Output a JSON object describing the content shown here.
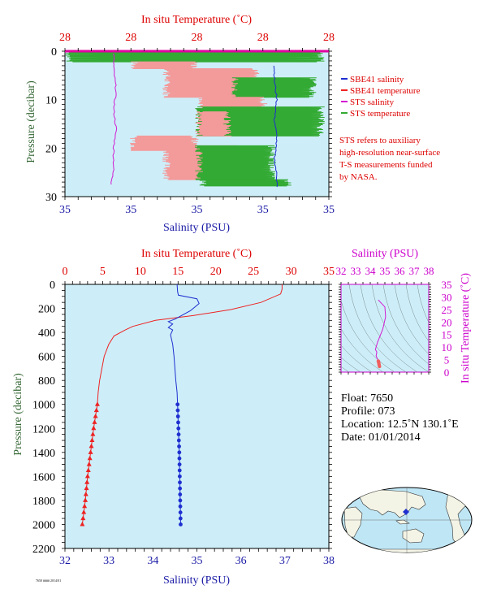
{
  "colors": {
    "panel_bg": "#cdeef9",
    "sbe41_salinity": "#1f2fd0",
    "sbe41_temperature": "#ee2222",
    "sts_salinity": "#d21cd2",
    "sts_temperature": "#33aa33",
    "sts_temperature_fill": "#f39a9a",
    "red_text": "#dd0000",
    "blue_text": "#1a1aa6",
    "green_text": "#336633",
    "magenta_text": "#cc00cc"
  },
  "top_chart": {
    "temp_axis_title": "In situ Temperature (˚C)",
    "temp_tick_labels": [
      "28",
      "28",
      "28",
      "28",
      "28"
    ],
    "sal_axis_title": "Salinity (PSU)",
    "sal_tick_labels": [
      "35",
      "35",
      "35",
      "35",
      "35"
    ],
    "pressure_axis_title": "Pressure (decibar)",
    "pressure_tick_labels": [
      "0",
      "10",
      "20",
      "30"
    ],
    "legend": [
      {
        "label": "SBE41 salinity",
        "color_key": "sbe41_salinity"
      },
      {
        "label": "SBE41 temperature",
        "color_key": "sbe41_temperature"
      },
      {
        "label": "STS salinity",
        "color_key": "sts_salinity"
      },
      {
        "label": "STS temperature",
        "color_key": "sts_temperature"
      }
    ],
    "note_lines": [
      "STS refers to auxiliary",
      "high-resolution near-surface",
      "T-S measurements funded",
      "by NASA."
    ]
  },
  "main_chart": {
    "temp_axis_title": "In situ Temperature (˚C)",
    "temp_tick_labels": [
      "0",
      "5",
      "10",
      "15",
      "20",
      "25",
      "30",
      "35"
    ],
    "sal_axis_title": "Salinity (PSU)",
    "sal_tick_labels": [
      "32",
      "33",
      "34",
      "35",
      "36",
      "37",
      "38"
    ],
    "pressure_axis_title": "Pressure (decibar)",
    "pressure_tick_labels": [
      "0",
      "200",
      "400",
      "600",
      "800",
      "1000",
      "1200",
      "1400",
      "1600",
      "1800",
      "2000",
      "2200"
    ]
  },
  "ts_chart": {
    "sal_axis_title": "Salinity (PSU)",
    "sal_tick_labels": [
      "32",
      "33",
      "34",
      "35",
      "36",
      "37",
      "38"
    ],
    "temp_axis_title": "In situ Temperature (˚C)",
    "temp_tick_labels": [
      "0",
      "5",
      "10",
      "15",
      "20",
      "25",
      "30",
      "35"
    ]
  },
  "float_info": {
    "float": "Float:  7650",
    "profile": "Profile:  073",
    "location": "Location:  12.5˚N  130.1˚E",
    "date": "Date:  01/01/2014"
  },
  "footer_text": "7650 #### 2014/01",
  "chart_data": [
    {
      "type": "line",
      "title": "",
      "xlabel": "Salinity (PSU)",
      "x2label": "In situ Temperature (˚C)",
      "ylabel": "Pressure (decibar)",
      "ylim": [
        0,
        30
      ],
      "y_inverted": true,
      "series": [
        {
          "name": "SBE41 salinity",
          "x_axis": "salinity",
          "points": [
            [
              34.93,
              3
            ],
            [
              34.93,
              6
            ],
            [
              34.94,
              10
            ],
            [
              34.93,
              14
            ],
            [
              34.94,
              18
            ],
            [
              34.93,
              22
            ],
            [
              34.94,
              26
            ],
            [
              34.94,
              28
            ]
          ]
        },
        {
          "name": "STS salinity",
          "x_axis": "salinity",
          "points": [
            [
              34.49,
              0.5
            ],
            [
              34.49,
              4
            ],
            [
              34.5,
              8
            ],
            [
              34.49,
              12
            ],
            [
              34.5,
              16
            ],
            [
              34.49,
              20
            ],
            [
              34.49,
              24
            ],
            [
              34.48,
              27.5
            ]
          ]
        },
        {
          "name": "STS temperature",
          "x_axis": "temperature",
          "note": "oscillating near-surface trace, values ~28 ˚C (axis ticks all print 28)"
        }
      ]
    },
    {
      "type": "line",
      "title": "",
      "xlabel": "Salinity (PSU)",
      "x2label": "In situ Temperature (˚C)",
      "ylabel": "Pressure (decibar)",
      "xlim": [
        32,
        38
      ],
      "x2lim": [
        0,
        35
      ],
      "ylim": [
        0,
        2200
      ],
      "y_inverted": true,
      "series": [
        {
          "name": "SBE41 salinity",
          "x_axis": "salinity",
          "points": [
            [
              34.55,
              0
            ],
            [
              34.56,
              60
            ],
            [
              34.58,
              90
            ],
            [
              35.0,
              120
            ],
            [
              35.05,
              160
            ],
            [
              34.85,
              220
            ],
            [
              34.5,
              290
            ],
            [
              34.35,
              310
            ],
            [
              34.45,
              330
            ],
            [
              34.35,
              360
            ],
            [
              34.45,
              380
            ],
            [
              34.4,
              420
            ],
            [
              34.45,
              500
            ],
            [
              34.48,
              600
            ],
            [
              34.5,
              700
            ],
            [
              34.52,
              800
            ],
            [
              34.55,
              900
            ],
            [
              34.56,
              1000
            ],
            [
              34.58,
              1200
            ],
            [
              34.6,
              1400
            ],
            [
              34.61,
              1600
            ],
            [
              34.62,
              1800
            ],
            [
              34.63,
              2000
            ]
          ]
        },
        {
          "name": "SBE41 temperature",
          "x_axis": "temperature",
          "points": [
            [
              28.8,
              0
            ],
            [
              28.8,
              40
            ],
            [
              28.6,
              80
            ],
            [
              26,
              150
            ],
            [
              22,
              210
            ],
            [
              17,
              260
            ],
            [
              12,
              300
            ],
            [
              9,
              350
            ],
            [
              8,
              380
            ],
            [
              6.5,
              430
            ],
            [
              5.8,
              500
            ],
            [
              5.2,
              600
            ],
            [
              4.9,
              700
            ],
            [
              4.6,
              800
            ],
            [
              4.4,
              900
            ],
            [
              4.3,
              1000
            ],
            [
              3.8,
              1200
            ],
            [
              3.4,
              1400
            ],
            [
              3.0,
              1600
            ],
            [
              2.7,
              1800
            ],
            [
              2.3,
              2000
            ]
          ]
        }
      ]
    },
    {
      "type": "scatter",
      "title": "",
      "xlabel": "Salinity (PSU)",
      "ylabel": "In situ Temperature (˚C)",
      "xlim": [
        32,
        38
      ],
      "ylim": [
        0,
        35
      ],
      "series": [
        {
          "name": "T-S profile",
          "points": [
            [
              34.55,
              28.8
            ],
            [
              34.58,
              28.6
            ],
            [
              35.0,
              26
            ],
            [
              35.05,
              22
            ],
            [
              34.85,
              17
            ],
            [
              34.5,
              12
            ],
            [
              34.35,
              9
            ],
            [
              34.45,
              8
            ],
            [
              34.4,
              6.5
            ],
            [
              34.45,
              5.8
            ],
            [
              34.5,
              5.2
            ],
            [
              34.55,
              4.4
            ],
            [
              34.58,
              3.8
            ],
            [
              34.6,
              3.0
            ],
            [
              34.63,
              2.3
            ]
          ]
        }
      ]
    }
  ]
}
